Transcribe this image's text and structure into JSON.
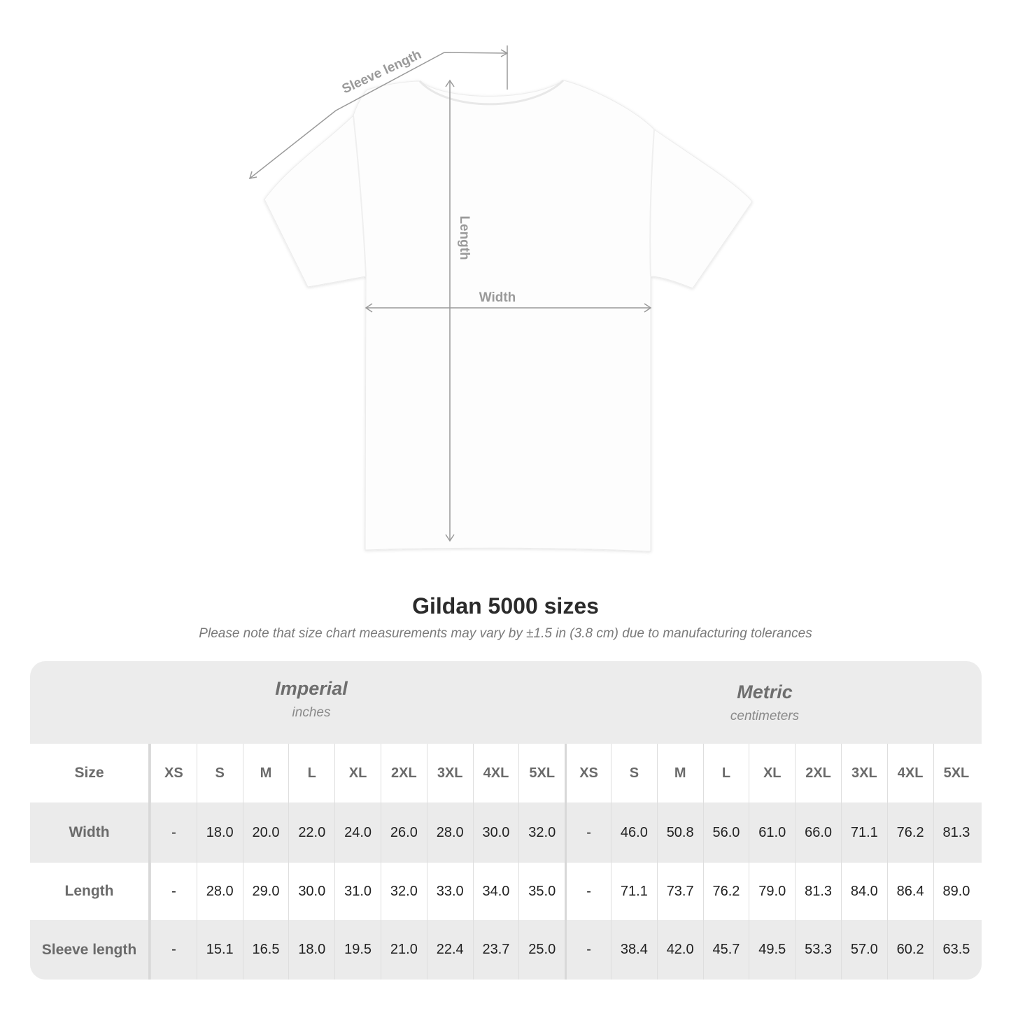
{
  "diagram": {
    "labels": {
      "sleeve": "Sleeve length",
      "length": "Length",
      "width": "Width"
    },
    "line_color": "#9a9a9a"
  },
  "title": "Gildan 5000 sizes",
  "note": "Please note that size chart measurements may vary by ±1.5 in (3.8 cm) due to manufacturing tolerances",
  "table": {
    "imperial": {
      "label": "Imperial",
      "unit": "inches"
    },
    "metric": {
      "label": "Metric",
      "unit": "centimeters"
    },
    "size_label": "Size",
    "sizes": [
      "XS",
      "S",
      "M",
      "L",
      "XL",
      "2XL",
      "3XL",
      "4XL",
      "5XL"
    ],
    "rows": [
      {
        "label": "Width",
        "imperial": [
          "-",
          "18.0",
          "20.0",
          "22.0",
          "24.0",
          "26.0",
          "28.0",
          "30.0",
          "32.0"
        ],
        "metric": [
          "-",
          "46.0",
          "50.8",
          "56.0",
          "61.0",
          "66.0",
          "71.1",
          "76.2",
          "81.3"
        ]
      },
      {
        "label": "Length",
        "imperial": [
          "-",
          "28.0",
          "29.0",
          "30.0",
          "31.0",
          "32.0",
          "33.0",
          "34.0",
          "35.0"
        ],
        "metric": [
          "-",
          "71.1",
          "73.7",
          "76.2",
          "79.0",
          "81.3",
          "84.0",
          "86.4",
          "89.0"
        ]
      },
      {
        "label": "Sleeve length",
        "imperial": [
          "-",
          "15.1",
          "16.5",
          "18.0",
          "19.5",
          "21.0",
          "22.4",
          "23.7",
          "25.0"
        ],
        "metric": [
          "-",
          "38.4",
          "42.0",
          "45.7",
          "49.5",
          "53.3",
          "57.0",
          "60.2",
          "63.5"
        ]
      }
    ]
  }
}
